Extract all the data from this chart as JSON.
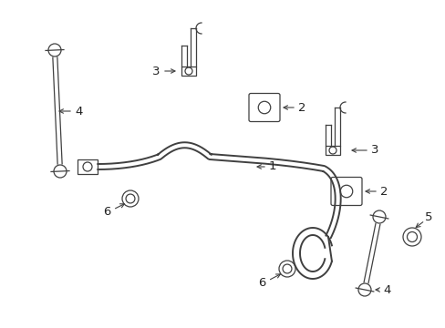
{
  "background": "#ffffff",
  "line_color": "#404040",
  "label_color": "#222222",
  "fig_width": 4.89,
  "fig_height": 3.6,
  "dpi": 100,
  "bar_lw": 1.4,
  "thin_lw": 0.9
}
